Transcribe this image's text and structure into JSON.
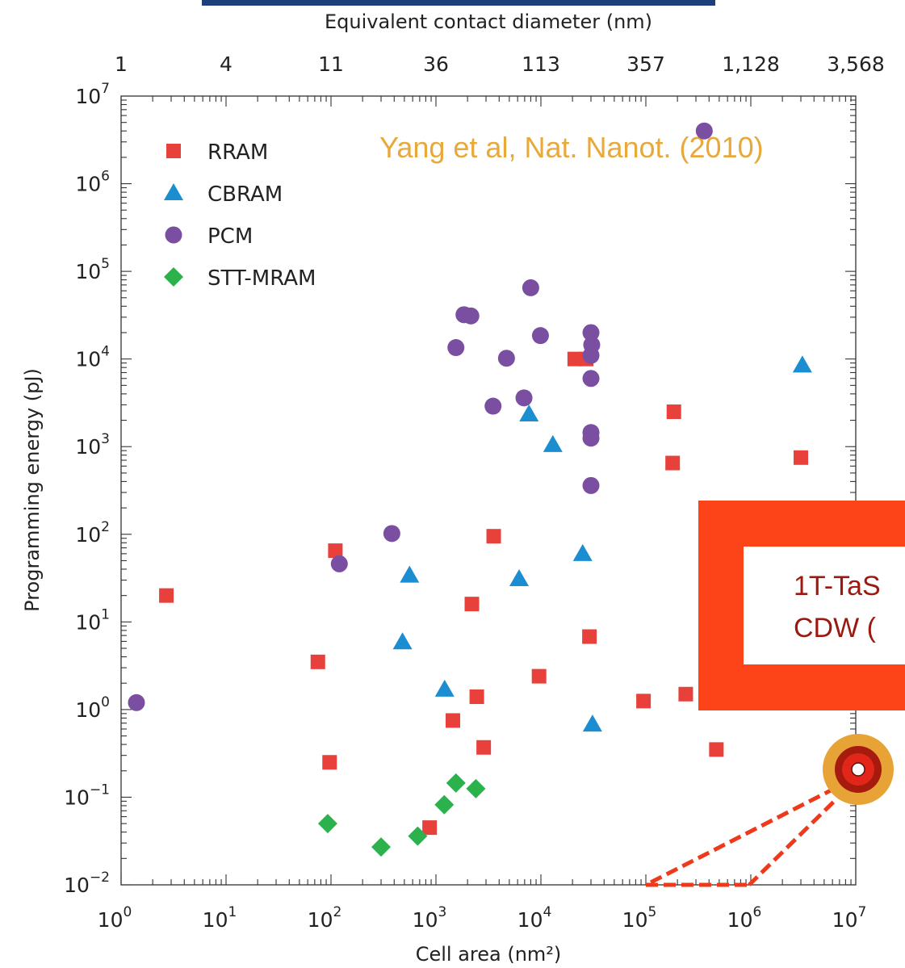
{
  "chart_data": {
    "type": "scatter",
    "xlabel": "Cell area (nm²)",
    "ylabel": "Programming energy (pJ)",
    "top_xlabel": "Equivalent contact diameter (nm)",
    "top_ticks": [
      "1",
      "4",
      "11",
      "36",
      "113",
      "357",
      "1,128",
      "3,568"
    ],
    "x_scale": "log",
    "y_scale": "log",
    "xlim": [
      1,
      10000000
    ],
    "ylim": [
      0.01,
      10000000
    ],
    "x_ticks": [
      [
        "10",
        "0"
      ],
      [
        "10",
        "1"
      ],
      [
        "10",
        "2"
      ],
      [
        "10",
        "3"
      ],
      [
        "10",
        "4"
      ],
      [
        "10",
        "5"
      ],
      [
        "10",
        "6"
      ],
      [
        "10",
        "7"
      ]
    ],
    "y_ticks": [
      [
        "10",
        "−2"
      ],
      [
        "10",
        "−1"
      ],
      [
        "10",
        "0"
      ],
      [
        "10",
        "1"
      ],
      [
        "10",
        "2"
      ],
      [
        "10",
        "3"
      ],
      [
        "10",
        "4"
      ],
      [
        "10",
        "5"
      ],
      [
        "10",
        "6"
      ],
      [
        "10",
        "7"
      ]
    ],
    "legend_position": "top-left",
    "annotation": "Yang et al, Nat. Nanot. (2010)",
    "callout_lines": [
      "1T-TaS",
      "CDW ("
    ],
    "series": [
      {
        "name": "RRAM",
        "marker": "square",
        "color": "#e8403a",
        "points": [
          [
            2.7,
            20
          ],
          [
            75,
            3.5
          ],
          [
            97,
            0.25
          ],
          [
            110,
            65
          ],
          [
            870,
            0.045
          ],
          [
            1450,
            0.75
          ],
          [
            2200,
            16
          ],
          [
            2450,
            1.4
          ],
          [
            2850,
            0.37
          ],
          [
            3550,
            95
          ],
          [
            9600,
            2.4
          ],
          [
            21000,
            10000
          ],
          [
            27000,
            10000
          ],
          [
            29000,
            6.8
          ],
          [
            95000,
            1.25
          ],
          [
            185000,
            2500
          ],
          [
            180000,
            650
          ],
          [
            240000,
            1.5
          ],
          [
            470000,
            0.35
          ],
          [
            3000000,
            750
          ]
        ]
      },
      {
        "name": "CBRAM",
        "marker": "triangle",
        "color": "#1a8ed1",
        "points": [
          [
            480,
            5.9
          ],
          [
            560,
            34
          ],
          [
            1210,
            1.7
          ],
          [
            6200,
            31
          ],
          [
            7700,
            2350
          ],
          [
            13000,
            1050
          ],
          [
            25000,
            60
          ],
          [
            31000,
            0.68
          ],
          [
            3100000,
            8500
          ]
        ]
      },
      {
        "name": "PCM",
        "marker": "circle",
        "color": "#7a4ea0",
        "points": [
          [
            1.4,
            1.2
          ],
          [
            120,
            46
          ],
          [
            380,
            102
          ],
          [
            1550,
            13500
          ],
          [
            1850,
            32000
          ],
          [
            2150,
            31000
          ],
          [
            3500,
            2900
          ],
          [
            4700,
            10200
          ],
          [
            6900,
            3600
          ],
          [
            8000,
            65000
          ],
          [
            9900,
            18500
          ],
          [
            30000,
            20000
          ],
          [
            30500,
            14500
          ],
          [
            30000,
            11000
          ],
          [
            30000,
            6000
          ],
          [
            30000,
            1450
          ],
          [
            30000,
            1250
          ],
          [
            30000,
            360
          ],
          [
            360000,
            4000000
          ]
        ]
      },
      {
        "name": "STT-MRAM",
        "marker": "diamond",
        "color": "#2bb24c",
        "points": [
          [
            93,
            0.05
          ],
          [
            300,
            0.027
          ],
          [
            670,
            0.036
          ],
          [
            1200,
            0.082
          ],
          [
            1550,
            0.145
          ],
          [
            2400,
            0.125
          ]
        ]
      }
    ]
  }
}
